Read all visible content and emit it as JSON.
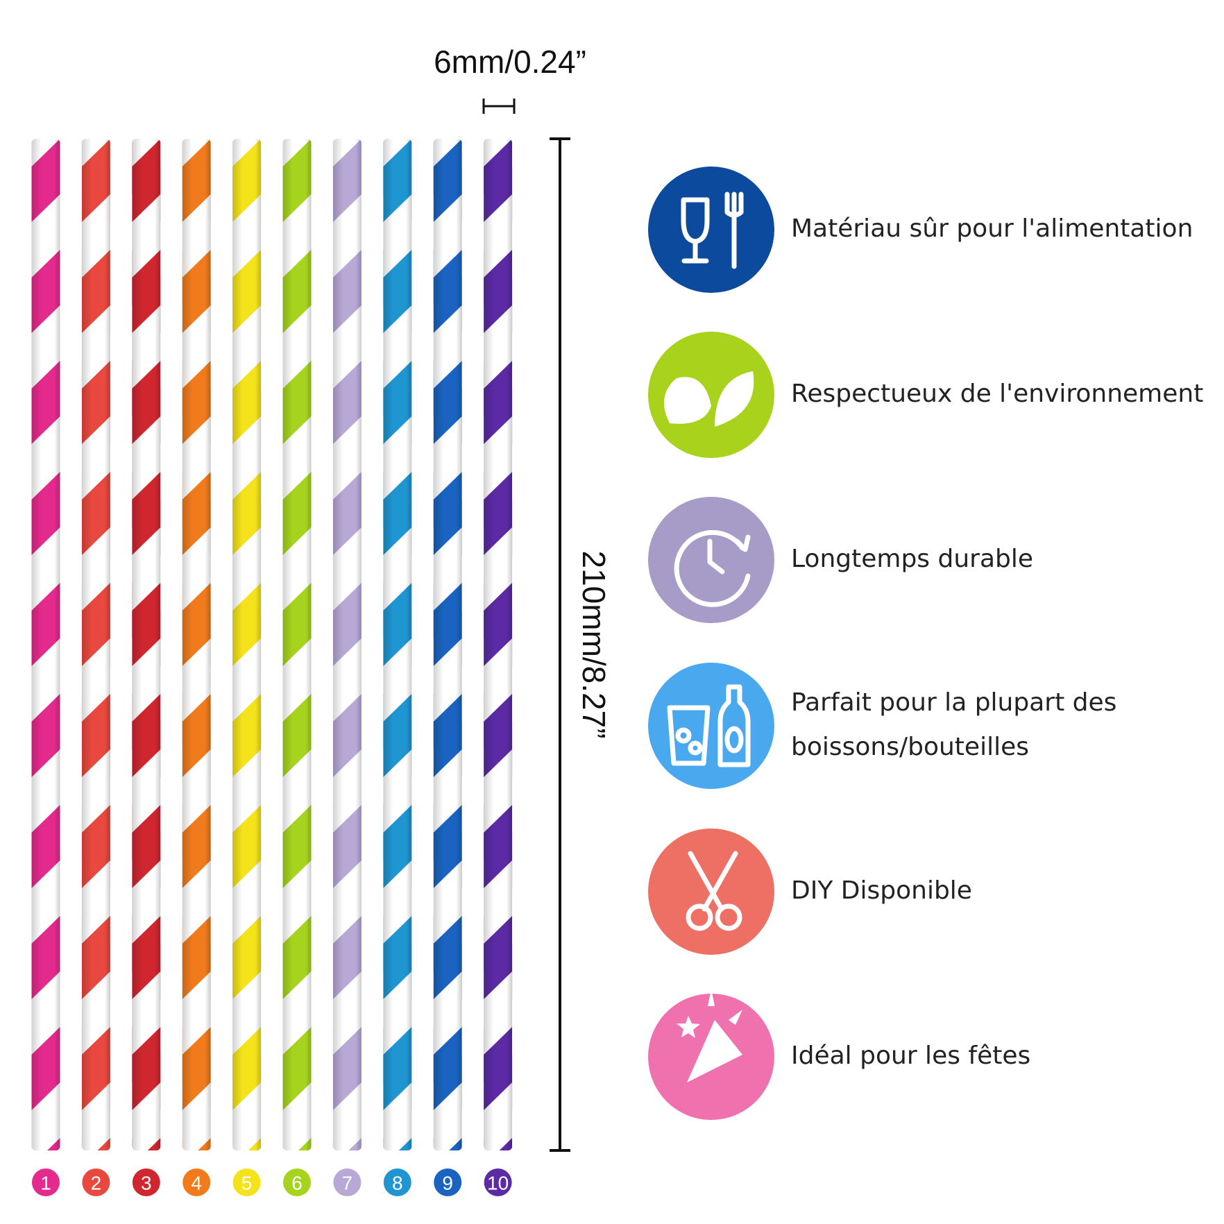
{
  "dimensions": {
    "diameter": "6mm/0.24”",
    "length": "210mm/8.27”"
  },
  "straws": [
    {
      "number": 1,
      "color": "#e42a8c"
    },
    {
      "number": 2,
      "color": "#e8483e"
    },
    {
      "number": 3,
      "color": "#cf2630"
    },
    {
      "number": 4,
      "color": "#f07a1c"
    },
    {
      "number": 5,
      "color": "#f4e21a"
    },
    {
      "number": 6,
      "color": "#a6d41e"
    },
    {
      "number": 7,
      "color": "#b7a8d6"
    },
    {
      "number": 8,
      "color": "#1f96d2"
    },
    {
      "number": 9,
      "color": "#1a63c0"
    },
    {
      "number": 10,
      "color": "#5b2aa4"
    }
  ],
  "features": [
    {
      "lines": [
        "Matériau sûr pour l'alimentation"
      ],
      "color": "#0b4a9c"
    },
    {
      "lines": [
        "Respectueux de l'environnement"
      ],
      "color": "#a8d21c"
    },
    {
      "lines": [
        "Longtemps durable"
      ],
      "color": "#a79bc8"
    },
    {
      "lines": [
        "Parfait pour la plupart des",
        "boissons/bouteilles"
      ],
      "color": "#4aa8ee"
    },
    {
      "lines": [
        "DIY Disponible"
      ],
      "color": "#ee6f63"
    },
    {
      "lines": [
        "Idéal pour les fêtes"
      ],
      "color": "#ef72ae"
    }
  ]
}
